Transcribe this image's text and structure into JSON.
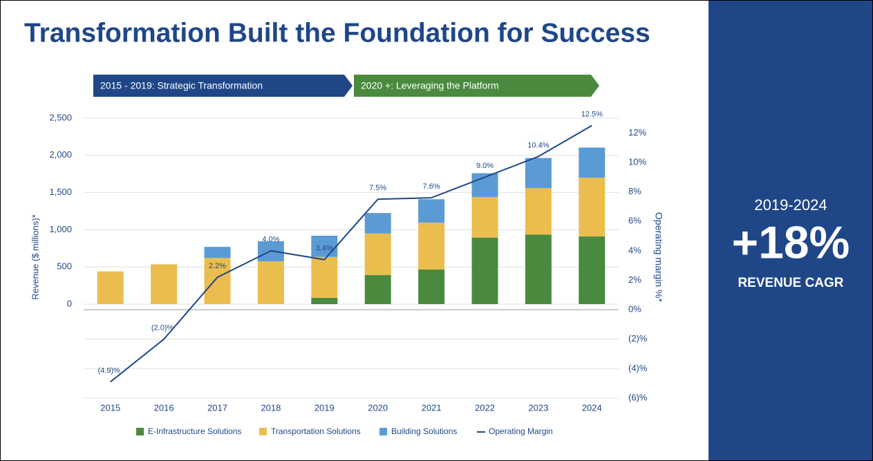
{
  "chart_data": {
    "type": "bar",
    "stacked": true,
    "title": "Transformation Built the Foundation for Success",
    "phases": [
      {
        "label": "2015 - 2019: Strategic Transformation",
        "color": "#1f4788"
      },
      {
        "label": "2020 +: Leveraging the Platform",
        "color": "#4a8a3f"
      }
    ],
    "callout": {
      "period": "2019-2024",
      "value": "+18%",
      "label": "REVENUE CAGR"
    },
    "ylabel": "Revenue ($ millions)*",
    "y2label": "Operating margin %*",
    "categories": [
      "2015",
      "2016",
      "2017",
      "2018",
      "2019",
      "2020",
      "2021",
      "2022",
      "2023",
      "2024"
    ],
    "ylim": [
      -1264,
      2500
    ],
    "yticks": [
      0,
      500,
      {
        "value": 1000,
        "label": "1,000"
      },
      {
        "value": 1500,
        "label": "1,500"
      },
      {
        "value": 2000,
        "label": "2,000"
      },
      {
        "value": 2500,
        "label": "2,500"
      }
    ],
    "y2lim": [
      -6,
      13
    ],
    "y2ticks": [
      {
        "value": -6,
        "label": "(6)%"
      },
      {
        "value": -4,
        "label": "(4)%"
      },
      {
        "value": -2,
        "label": "(2)%"
      },
      {
        "value": 0,
        "label": "0%"
      },
      {
        "value": 2,
        "label": "2%"
      },
      {
        "value": 4,
        "label": "4%"
      },
      {
        "value": 6,
        "label": "6%"
      },
      {
        "value": 8,
        "label": "8%"
      },
      {
        "value": 10,
        "label": "10%"
      },
      {
        "value": 12,
        "label": "12%"
      }
    ],
    "grid": true,
    "series": [
      {
        "name": "E-Infrastructure Solutions",
        "color": "#4a8a3f",
        "values": [
          0,
          0,
          0,
          0,
          85,
          390,
          465,
          895,
          935,
          910
        ]
      },
      {
        "name": "Transportation Solutions",
        "color": "#ebbd4e",
        "values": [
          440,
          535,
          620,
          575,
          550,
          560,
          630,
          545,
          625,
          790
        ]
      },
      {
        "name": "Building Solutions",
        "color": "#5b9bd5",
        "values": [
          0,
          0,
          150,
          270,
          285,
          275,
          315,
          320,
          405,
          405
        ]
      },
      {
        "name": "Operating Margin",
        "type": "line",
        "axis": "y2",
        "color": "#1f4788",
        "values": [
          -4.9,
          -2.0,
          2.2,
          4.0,
          3.4,
          7.5,
          7.6,
          9.0,
          10.4,
          12.5
        ],
        "value_labels": [
          "(4.9)%",
          "(2.0)%",
          "2.2%",
          "4.0%",
          "3.4%",
          "7.5%",
          "7.6%",
          "9.0%",
          "10.4%",
          "12.5%"
        ]
      }
    ]
  }
}
